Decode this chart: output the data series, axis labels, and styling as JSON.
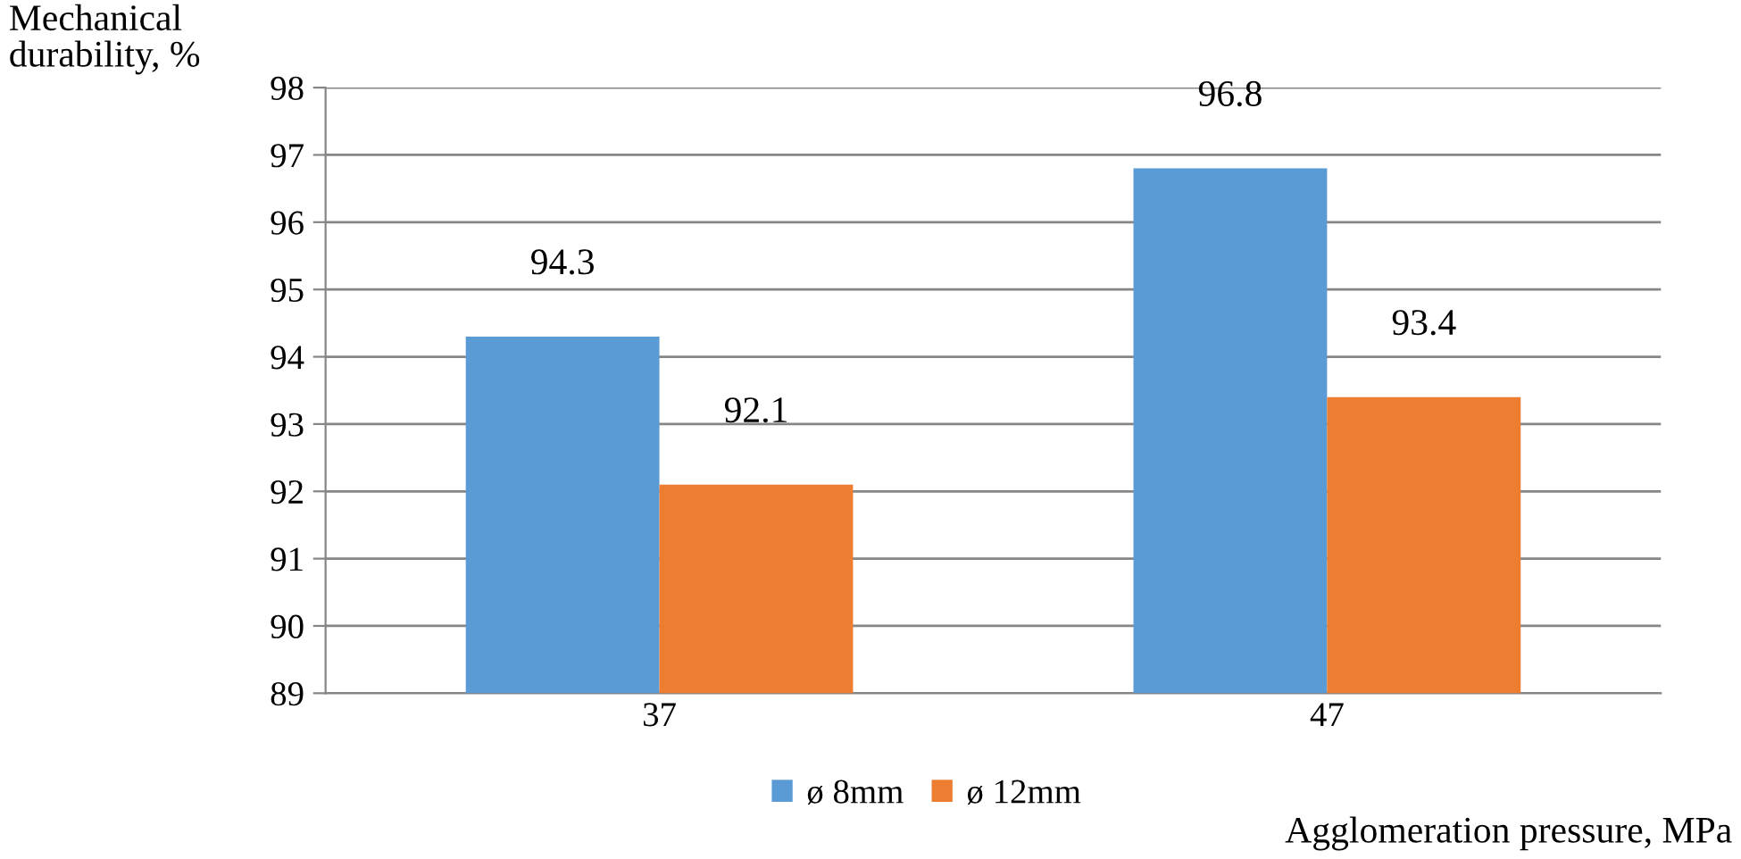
{
  "chart_data": {
    "type": "bar",
    "xlabel": "Agglomeration pressure, MPa",
    "ylabel": "Mechanical\ndurability, %",
    "categories": [
      "37",
      "47"
    ],
    "series": [
      {
        "name": "ø 8mm",
        "color": "#5b9bd5",
        "values": [
          94.3,
          96.8
        ]
      },
      {
        "name": "ø 12mm",
        "color": "#ed7d31",
        "values": [
          92.1,
          93.4
        ]
      }
    ],
    "ylim": [
      89,
      98
    ],
    "yticks": [
      89,
      90,
      91,
      92,
      93,
      94,
      95,
      96,
      97,
      98
    ],
    "grid": "y",
    "legend": "bottom",
    "data_labels": true
  }
}
